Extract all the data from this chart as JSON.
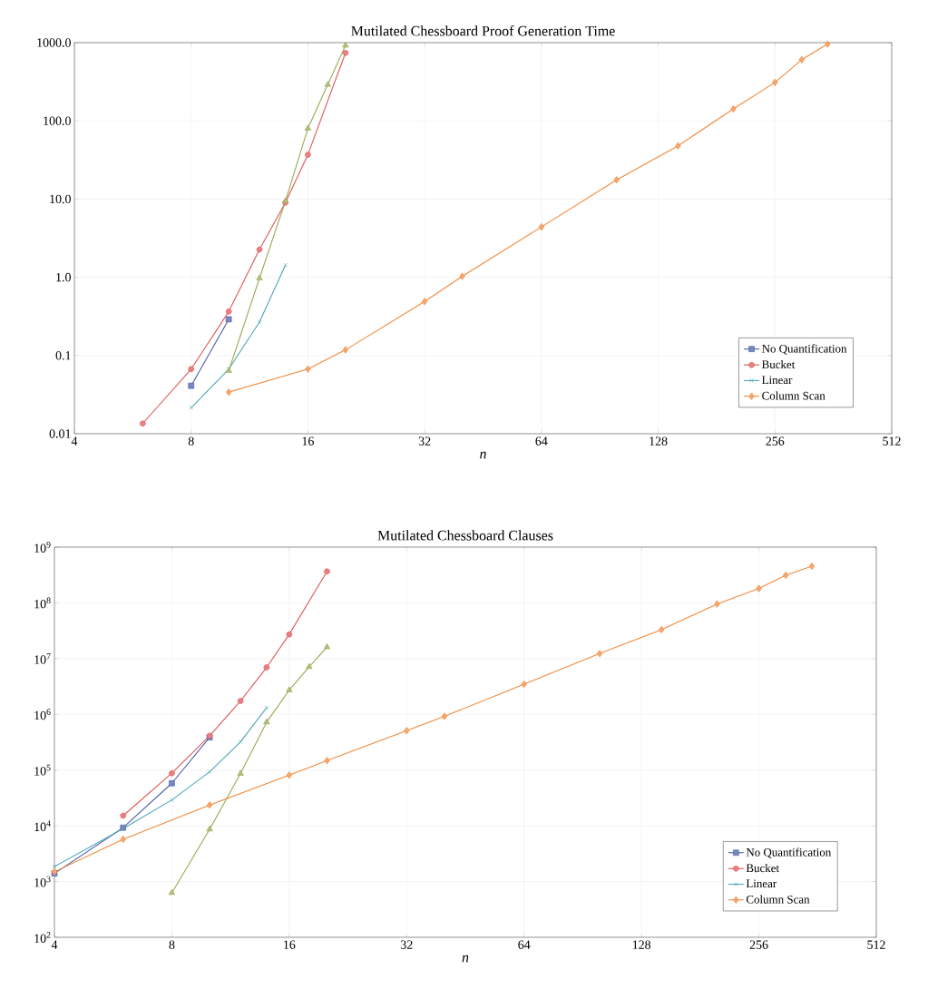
{
  "chart_data": [
    {
      "type": "line",
      "title": "Mutilated Chessboard Proof Generation Time",
      "xlabel": "*n*",
      "log": "xy",
      "grid": true,
      "legend": "bottom right",
      "line_style": "solid",
      "xlim": [
        4,
        512
      ],
      "ylim": [
        0.01,
        1000
      ],
      "xticks": [
        4,
        8,
        16,
        32,
        64,
        128,
        256,
        512
      ],
      "yticks": [
        0.01,
        0.1,
        {
          "value": 1,
          "label": "1.0"
        },
        {
          "value": 10,
          "label": "10.0"
        },
        {
          "value": 100,
          "label": "100.0"
        },
        {
          "value": 1000,
          "label": "1000.0"
        }
      ],
      "series": [
        {
          "name": "No Quantification",
          "color": "#4b5fa6",
          "marker": "square",
          "x": [
            8,
            10
          ],
          "values": [
            0.041,
            0.29
          ]
        },
        {
          "name": "Bucket",
          "color": "#e05656",
          "marker": "circle",
          "x": [
            6,
            8,
            10,
            12,
            14,
            16,
            20
          ],
          "values": [
            0.0135,
            0.067,
            0.365,
            2.26,
            9.0,
            37,
            740
          ]
        },
        {
          "name": "Linear",
          "color": "#4ea6b8",
          "marker": "cross",
          "x": [
            8,
            10,
            12,
            14
          ],
          "values": [
            0.0215,
            0.067,
            0.267,
            1.43
          ]
        },
        {
          "color": "#9aa853",
          "marker": "triangle",
          "x": [
            10,
            12,
            14,
            16,
            18,
            20
          ],
          "values": [
            0.064,
            0.97,
            9.4,
            80,
            290,
            920
          ]
        },
        {
          "name": "Column Scan",
          "color": "#f08a3c",
          "marker": "diamond",
          "x": [
            10,
            16,
            20,
            32,
            40,
            64,
            100,
            144,
            200,
            256,
            300,
            350
          ],
          "values": [
            0.034,
            0.067,
            0.118,
            0.49,
            1.03,
            4.4,
            17.6,
            48,
            142,
            310,
            605,
            960
          ]
        }
      ]
    },
    {
      "type": "line",
      "title": "Mutilated Chessboard Clauses",
      "xlabel": "*n*",
      "log": "xy",
      "grid": true,
      "legend": "bottom right",
      "line_style": "solid",
      "xlim": [
        4,
        512
      ],
      "ylim": [
        100,
        1000000000
      ],
      "xticks": [
        4,
        8,
        16,
        32,
        64,
        128,
        256,
        512
      ],
      "yticks": [
        {
          "value": 100,
          "label": "10$^{2}$"
        },
        {
          "value": 1000,
          "label": "10$^{3}$"
        },
        {
          "value": 10000,
          "label": "10$^{4}$"
        },
        {
          "value": 100000,
          "label": "10$^{5}$"
        },
        {
          "value": 1000000,
          "label": "10$^{6}$"
        },
        {
          "value": 10000000,
          "label": "10$^{7}$"
        },
        {
          "value": 100000000,
          "label": "10$^{8}$"
        },
        {
          "value": 1000000000,
          "label": "10$^{9}$"
        }
      ],
      "series": [
        {
          "name": "No Quantification",
          "color": "#4b5fa6",
          "marker": "square",
          "x": [
            4,
            6,
            8,
            10
          ],
          "values": [
            1400,
            9250,
            58000,
            387000
          ]
        },
        {
          "name": "Bucket",
          "color": "#e05656",
          "marker": "circle",
          "x": [
            6,
            8,
            10,
            12,
            14,
            16,
            20
          ],
          "values": [
            15200,
            87700,
            413000,
            1740000,
            6950000,
            27200000,
            366000000
          ]
        },
        {
          "name": "Linear",
          "color": "#4ea6b8",
          "marker": "cross",
          "x": [
            4,
            6,
            8,
            10,
            12,
            14
          ],
          "values": [
            1860,
            8900,
            29100,
            93000,
            321000,
            1320000
          ]
        },
        {
          "color": "#9aa853",
          "marker": "triangle",
          "x": [
            8,
            10,
            12,
            14,
            16,
            18,
            20
          ],
          "values": [
            628,
            8670,
            86400,
            724000,
            2720000,
            7130000,
            16100000
          ]
        },
        {
          "name": "Column Scan",
          "color": "#f08a3c",
          "marker": "diamond",
          "x": [
            4,
            6,
            10,
            16,
            20,
            32,
            40,
            64,
            100,
            144,
            200,
            256,
            300,
            350
          ],
          "values": [
            1500,
            5740,
            23600,
            81300,
            148000,
            509000,
            920000,
            3470000,
            12300000,
            33000000,
            95500000,
            181000000,
            313000000,
            455000000
          ]
        }
      ]
    }
  ]
}
